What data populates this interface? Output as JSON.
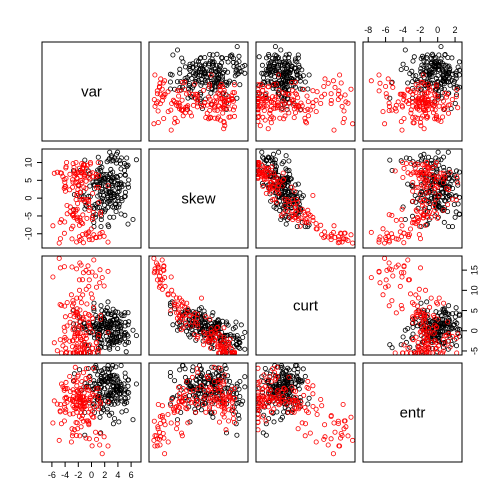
{
  "chart_data": {
    "type": "scatter",
    "kind": "pairs",
    "variables": [
      {
        "name": "var",
        "range": [
          -7.5,
          7.5
        ],
        "ticks": [
          -6,
          -4,
          -2,
          0,
          2,
          4,
          6
        ]
      },
      {
        "name": "skew",
        "range": [
          -14,
          13.8
        ],
        "ticks": [
          -10,
          -5,
          0,
          5,
          10
        ]
      },
      {
        "name": "curt",
        "range": [
          -6,
          18.5
        ],
        "ticks": [
          -5,
          0,
          5,
          10,
          15
        ]
      },
      {
        "name": "entr",
        "range": [
          -8.6,
          2.8
        ],
        "ticks": [
          -8,
          -6,
          -4,
          -2,
          0,
          2
        ]
      }
    ],
    "tick_labels": {
      "var": [
        "-6",
        "-4",
        "-2",
        "0",
        "2",
        "4",
        "6"
      ],
      "skew": [
        "-10",
        "-5",
        "0",
        "5",
        "10"
      ],
      "curt": [
        "-5",
        "0",
        "5",
        "10",
        "15"
      ],
      "entr": [
        "-8",
        "-6",
        "-4",
        "-2",
        "0",
        "2"
      ]
    },
    "axis_sides": {
      "var": "bottom",
      "skew": "left",
      "curt": "right",
      "entr": "top"
    },
    "groups": [
      {
        "color": "#000000",
        "marker": "open-circle",
        "count": 762
      },
      {
        "color": "#ff0000",
        "marker": "open-circle",
        "count": 610
      }
    ],
    "grid": false,
    "legend": "none"
  }
}
